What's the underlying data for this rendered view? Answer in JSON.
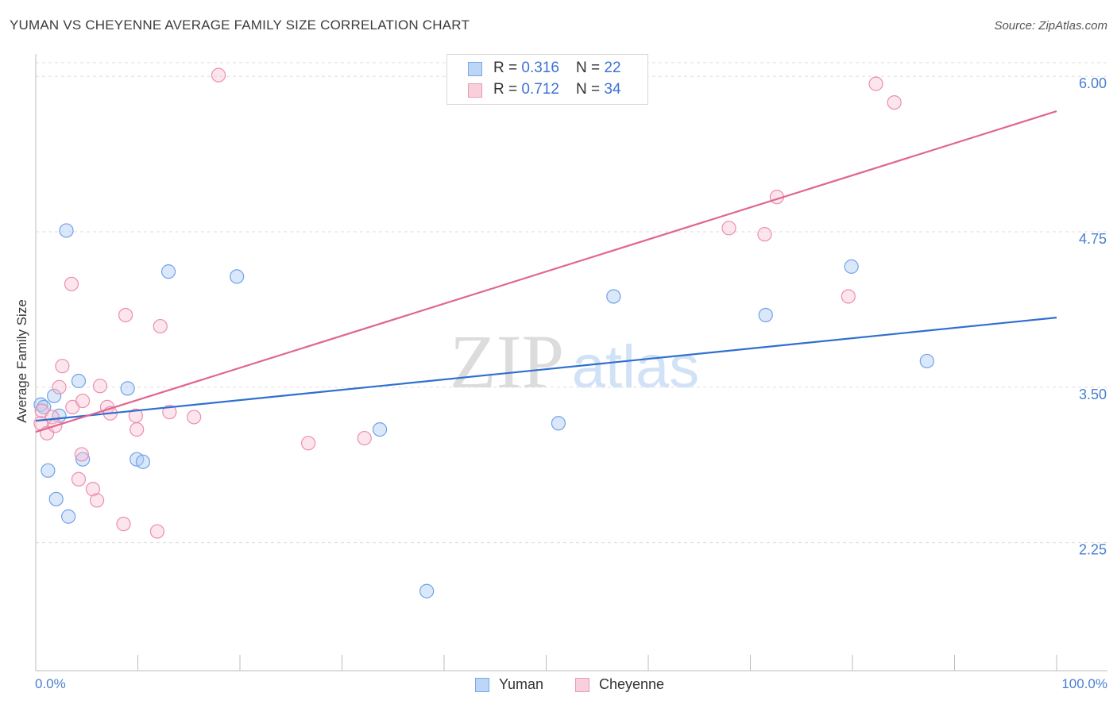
{
  "title": "YUMAN VS CHEYENNE AVERAGE FAMILY SIZE CORRELATION CHART",
  "source": "Source: ZipAtlas.com",
  "watermark": {
    "zip": "ZIP",
    "atlas": "atlas"
  },
  "legend": [
    {
      "r_label": "R = ",
      "r": "0.316",
      "n_label": "N = ",
      "n": "22"
    },
    {
      "r_label": "R = ",
      "r": "0.712",
      "n_label": "N = ",
      "n": "34"
    }
  ],
  "chart_data": {
    "type": "scatter",
    "title": "YUMAN VS CHEYENNE AVERAGE FAMILY SIZE CORRELATION CHART",
    "xlabel": "",
    "ylabel": "Average Family Size",
    "x_tick_labels": [
      "0.0%",
      "100.0%"
    ],
    "y_ticks": [
      2.25,
      3.5,
      4.75,
      6.0
    ],
    "y_tick_labels": [
      "2.25",
      "3.50",
      "4.75",
      "6.00"
    ],
    "xlim": [
      0,
      100
    ],
    "ylim": [
      1.22,
      6.18
    ],
    "colors": {
      "Yuman": "#6fa3e8",
      "Cheyenne": "#eb8fb0",
      "Yuman_line": "#2f6fcf",
      "Cheyenne_line": "#e0668f",
      "axis_text": "#4a7fd0"
    },
    "series": [
      {
        "name": "Yuman",
        "x": [
          0.5,
          0.8,
          1.2,
          1.8,
          2.0,
          2.3,
          3.0,
          3.2,
          4.2,
          4.6,
          9.0,
          9.9,
          10.5,
          13.0,
          19.7,
          33.7,
          38.3,
          51.2,
          56.6,
          71.5,
          79.9,
          87.3
        ],
        "y": [
          3.36,
          3.34,
          2.83,
          3.43,
          2.6,
          3.27,
          4.76,
          2.46,
          3.55,
          2.92,
          3.49,
          2.92,
          2.9,
          4.43,
          4.39,
          3.16,
          1.86,
          3.21,
          4.23,
          4.08,
          4.47,
          3.71
        ],
        "trend": {
          "x": [
            0,
            100
          ],
          "y": [
            3.23,
            4.06
          ]
        }
      },
      {
        "name": "Cheyenne",
        "x": [
          0.5,
          0.6,
          1.1,
          1.6,
          1.9,
          2.3,
          2.6,
          3.5,
          3.6,
          4.2,
          4.5,
          4.6,
          5.6,
          6.0,
          6.3,
          7.0,
          7.3,
          8.6,
          8.8,
          9.8,
          9.9,
          11.9,
          12.2,
          13.1,
          15.5,
          17.9,
          26.7,
          32.2,
          67.9,
          71.4,
          72.6,
          79.6,
          82.3,
          84.1
        ],
        "y": [
          3.21,
          3.31,
          3.13,
          3.26,
          3.19,
          3.5,
          3.67,
          4.33,
          3.34,
          2.76,
          2.96,
          3.39,
          2.68,
          2.59,
          3.51,
          3.34,
          3.29,
          2.4,
          4.08,
          3.27,
          3.16,
          2.34,
          3.99,
          3.3,
          3.26,
          6.01,
          3.05,
          3.09,
          4.78,
          4.73,
          5.03,
          4.23,
          5.94,
          5.79
        ],
        "trend": {
          "x": [
            0,
            100
          ],
          "y": [
            3.14,
            5.72
          ]
        }
      }
    ]
  }
}
